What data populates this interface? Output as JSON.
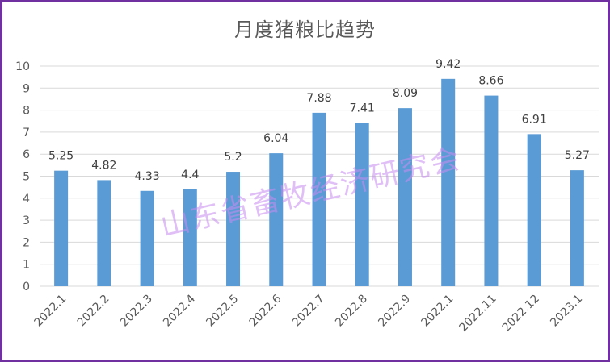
{
  "chart_data": {
    "type": "bar",
    "title": "月度猪粮比趋势",
    "categories": [
      "2022.1",
      "2022.2",
      "2022.3",
      "2022.4",
      "2022.5",
      "2022.6",
      "2022.7",
      "2022.8",
      "2022.9",
      "2022.1",
      "2022.11",
      "2022.12",
      "2023.1"
    ],
    "value_labels": [
      "5.25",
      "4.82",
      "4.33",
      "4.4",
      "5.2",
      "6.04",
      "7.88",
      "7.41",
      "8.09",
      "9.42",
      "8.66",
      "6.91",
      "5.27"
    ],
    "values": [
      5.25,
      4.82,
      4.33,
      4.4,
      5.2,
      6.04,
      7.88,
      7.41,
      8.09,
      9.42,
      8.66,
      6.91,
      5.27
    ],
    "ylim": [
      0,
      10
    ],
    "yticks": [
      "0",
      "1",
      "2",
      "3",
      "4",
      "5",
      "6",
      "7",
      "8",
      "9",
      "10"
    ],
    "grid": true,
    "legend": "none",
    "bar_color": "#5b9bd5"
  },
  "watermark": "山东省畜牧经济研究会",
  "colors": {
    "border": "#7030a0",
    "gridline": "#d9d9d9"
  }
}
